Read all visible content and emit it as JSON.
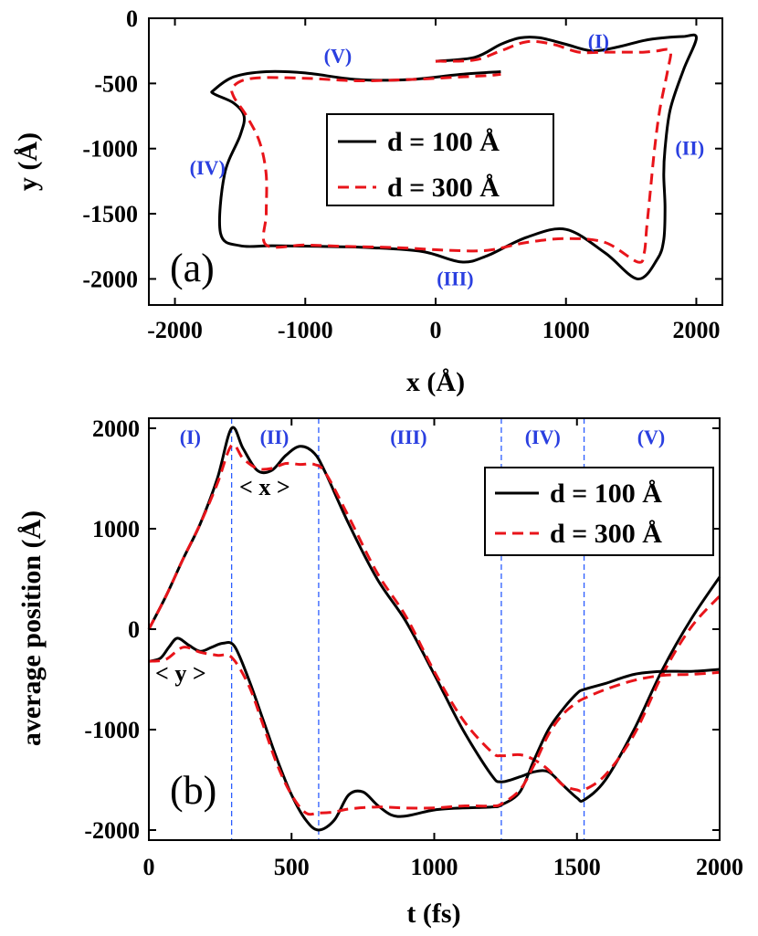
{
  "chart_data": [
    {
      "type": "line",
      "panel": "(a)",
      "xlabel": "x (Å)",
      "ylabel": "y (Å)",
      "xlim": [
        -2200,
        2200
      ],
      "ylim": [
        -2200,
        0
      ],
      "xticks": [
        -2000,
        -1000,
        0,
        1000,
        2000
      ],
      "yticks": [
        0,
        -500,
        -1000,
        -1500,
        -2000
      ],
      "xtick_labels": [
        "-2000",
        "-1000",
        "0",
        "1000",
        "2000"
      ],
      "ytick_labels": [
        "0",
        "-500",
        "-1000",
        "-1500",
        "-2000"
      ],
      "region_labels": [
        {
          "text": "(I)",
          "x": 1250,
          "y": -180
        },
        {
          "text": "(II)",
          "x": 1950,
          "y": -1000
        },
        {
          "text": "(III)",
          "x": 150,
          "y": -2000
        },
        {
          "text": "(IV)",
          "x": -1750,
          "y": -1150
        },
        {
          "text": "(V)",
          "x": -750,
          "y": -290
        }
      ],
      "legend": {
        "placement": "center",
        "entries": [
          "d = 100 Å",
          "d = 300 Å"
        ]
      },
      "series": [
        {
          "name": "d = 100 Å",
          "style": "solid",
          "color": "#000000",
          "x": [
            0,
            300,
            500,
            650,
            800,
            1000,
            1200,
            1400,
            1600,
            1750,
            1900,
            2000,
            1900,
            1800,
            1760,
            1750,
            1760,
            1750,
            1700,
            1550,
            1300,
            1000,
            700,
            400,
            200,
            -100,
            -500,
            -900,
            -1250,
            -1500,
            -1650,
            -1620,
            -1500,
            -1470,
            -1550,
            -1700,
            -1700,
            -1550,
            -1300,
            -1000,
            -600,
            -200,
            200,
            500
          ],
          "y": [
            -330,
            -300,
            -200,
            -150,
            -150,
            -200,
            -250,
            -220,
            -170,
            -150,
            -140,
            -150,
            -400,
            -700,
            -1000,
            -1200,
            -1450,
            -1700,
            -1850,
            -2000,
            -1800,
            -1620,
            -1680,
            -1820,
            -1870,
            -1790,
            -1760,
            -1750,
            -1745,
            -1745,
            -1650,
            -1200,
            -900,
            -750,
            -650,
            -580,
            -550,
            -450,
            -410,
            -420,
            -470,
            -470,
            -430,
            -410
          ]
        },
        {
          "name": "d = 300 Å",
          "style": "dashed",
          "color": "#e8141a",
          "x": [
            0,
            300,
            500,
            700,
            900,
            1100,
            1300,
            1500,
            1600,
            1700,
            1800,
            1780,
            1720,
            1680,
            1650,
            1620,
            1600,
            1550,
            1300,
            1000,
            700,
            400,
            100,
            -300,
            -700,
            -1000,
            -1300,
            -1300,
            -1300,
            -1350,
            -1450,
            -1550,
            -1550,
            -1400,
            -1000,
            -600,
            -200,
            200,
            400,
            500
          ],
          "y": [
            -330,
            -320,
            -250,
            -180,
            -200,
            -260,
            -260,
            -260,
            -260,
            -250,
            -250,
            -400,
            -700,
            -1000,
            -1300,
            -1600,
            -1800,
            -1870,
            -1720,
            -1690,
            -1720,
            -1780,
            -1780,
            -1760,
            -1750,
            -1740,
            -1740,
            -1500,
            -1200,
            -950,
            -750,
            -600,
            -520,
            -460,
            -460,
            -480,
            -470,
            -450,
            -440,
            -430
          ]
        }
      ]
    },
    {
      "type": "line",
      "panel": "(b)",
      "xlabel": "t (fs)",
      "ylabel": "average position (Å)",
      "xlim": [
        0,
        2000
      ],
      "ylim": [
        -2100,
        2100
      ],
      "xticks": [
        0,
        500,
        1000,
        1500,
        2000
      ],
      "yticks": [
        2000,
        1000,
        0,
        -1000,
        -2000
      ],
      "xtick_labels": [
        "0",
        "500",
        "1000",
        "1500",
        "2000"
      ],
      "ytick_labels": [
        "2000",
        "1000",
        "0",
        "-1000",
        "-2000"
      ],
      "region_boundaries_t": [
        290,
        595,
        1235,
        1525
      ],
      "region_labels": [
        {
          "text": "(I)",
          "t": 145
        },
        {
          "text": "(II)",
          "t": 440
        },
        {
          "text": "(III)",
          "t": 910
        },
        {
          "text": "(IV)",
          "t": 1380
        },
        {
          "text": "(V)",
          "t": 1760
        }
      ],
      "annotations": [
        "< x >",
        "< y >"
      ],
      "legend": {
        "placement": "top-right",
        "entries": [
          "d = 100 Å",
          "d = 300 Å"
        ]
      },
      "series": [
        {
          "name": "<x>, d = 100 Å",
          "style": "solid",
          "color": "#000000",
          "t": [
            0,
            60,
            120,
            180,
            240,
            290,
            330,
            380,
            430,
            480,
            530,
            580,
            620,
            700,
            800,
            900,
            1000,
            1100,
            1200,
            1235,
            1300,
            1350,
            1400,
            1450,
            1500,
            1525,
            1600,
            1700,
            1800,
            1900,
            2000
          ],
          "values": [
            0,
            330,
            700,
            1050,
            1500,
            2000,
            1800,
            1580,
            1580,
            1730,
            1820,
            1750,
            1550,
            1050,
            500,
            80,
            -450,
            -1000,
            -1450,
            -1520,
            -1470,
            -1420,
            -1420,
            -1550,
            -1680,
            -1700,
            -1500,
            -1000,
            -400,
            100,
            520
          ]
        },
        {
          "name": "<x>, d = 300 Å",
          "style": "dashed",
          "color": "#e8141a",
          "t": [
            0,
            60,
            120,
            180,
            240,
            290,
            330,
            380,
            430,
            480,
            530,
            580,
            620,
            700,
            800,
            900,
            1000,
            1100,
            1200,
            1235,
            1300,
            1350,
            1400,
            1450,
            1500,
            1525,
            1600,
            1700,
            1800,
            1900,
            2000
          ],
          "values": [
            0,
            330,
            700,
            1050,
            1450,
            1830,
            1700,
            1600,
            1600,
            1650,
            1640,
            1640,
            1550,
            1120,
            560,
            130,
            -420,
            -900,
            -1220,
            -1260,
            -1250,
            -1300,
            -1400,
            -1550,
            -1600,
            -1600,
            -1450,
            -1050,
            -450,
            20,
            330
          ]
        },
        {
          "name": "<y>, d = 100 Å",
          "style": "solid",
          "color": "#000000",
          "t": [
            0,
            40,
            70,
            100,
            140,
            180,
            220,
            260,
            300,
            350,
            400,
            450,
            500,
            550,
            595,
            650,
            700,
            750,
            800,
            850,
            900,
            1000,
            1100,
            1200,
            1235,
            1300,
            1350,
            1400,
            1450,
            1500,
            1525,
            1600,
            1700,
            1800,
            1900,
            2000
          ],
          "values": [
            -320,
            -290,
            -180,
            -90,
            -160,
            -220,
            -180,
            -140,
            -170,
            -500,
            -900,
            -1300,
            -1650,
            -1900,
            -2000,
            -1900,
            -1650,
            -1620,
            -1750,
            -1850,
            -1860,
            -1800,
            -1780,
            -1770,
            -1750,
            -1620,
            -1300,
            -1000,
            -800,
            -640,
            -600,
            -540,
            -450,
            -420,
            -420,
            -400
          ]
        },
        {
          "name": "<y>, d = 300 Å",
          "style": "dashed",
          "color": "#e8141a",
          "t": [
            0,
            60,
            120,
            180,
            240,
            290,
            350,
            400,
            450,
            500,
            550,
            595,
            650,
            700,
            800,
            900,
            1000,
            1100,
            1200,
            1235,
            1300,
            1350,
            1400,
            1450,
            1500,
            1525,
            1600,
            1700,
            1800,
            1900,
            2000
          ],
          "values": [
            -320,
            -300,
            -180,
            -230,
            -260,
            -280,
            -560,
            -950,
            -1350,
            -1650,
            -1830,
            -1830,
            -1820,
            -1790,
            -1770,
            -1780,
            -1780,
            -1760,
            -1760,
            -1740,
            -1600,
            -1350,
            -1050,
            -850,
            -730,
            -690,
            -600,
            -510,
            -460,
            -450,
            -430
          ]
        }
      ]
    }
  ]
}
